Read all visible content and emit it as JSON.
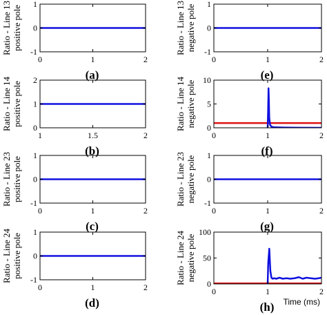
{
  "colors": {
    "primary": "#1010e0",
    "threshold": "#e01010",
    "axis": "#000000"
  },
  "chart_data": [
    {
      "id": "a",
      "type": "line",
      "panel_label": "(a)",
      "ylabel": [
        "Ratio - Line 13",
        "positive pole"
      ],
      "xlabel": "",
      "xlim": [
        0,
        2
      ],
      "ylim": [
        -1,
        1
      ],
      "xticks": [
        0,
        1,
        2
      ],
      "xtick_labels": [
        "0",
        "1",
        "2"
      ],
      "yticks": [
        -1,
        0,
        1
      ],
      "ytick_labels": [
        "-1",
        "0",
        "1"
      ],
      "grid": false,
      "series": [
        {
          "color": "#1010e0",
          "x": [
            0,
            2
          ],
          "y": [
            0,
            0
          ]
        }
      ]
    },
    {
      "id": "b",
      "type": "line",
      "panel_label": "(b)",
      "ylabel": [
        "Ratio - Line 14",
        "positive pole"
      ],
      "xlabel": "",
      "xlim": [
        1,
        2
      ],
      "ylim": [
        0,
        2
      ],
      "xticks": [
        1,
        1.5,
        2
      ],
      "xtick_labels": [
        "1",
        "1.5",
        "2"
      ],
      "yticks": [
        0,
        1,
        2
      ],
      "ytick_labels": [
        "0",
        "1",
        "2"
      ],
      "grid": false,
      "series": [
        {
          "color": "#1010e0",
          "x": [
            1,
            2
          ],
          "y": [
            1,
            1
          ]
        }
      ]
    },
    {
      "id": "c",
      "type": "line",
      "panel_label": "(c)",
      "ylabel": [
        "Ratio - Line 23",
        "positive pole"
      ],
      "xlabel": "",
      "xlim": [
        0,
        2
      ],
      "ylim": [
        -1,
        1
      ],
      "xticks": [
        0,
        1,
        2
      ],
      "xtick_labels": [
        "0",
        "1",
        "2"
      ],
      "yticks": [
        -1,
        0,
        1
      ],
      "ytick_labels": [
        "-1",
        "0",
        "1"
      ],
      "grid": false,
      "series": [
        {
          "color": "#1010e0",
          "x": [
            0,
            2
          ],
          "y": [
            0,
            0
          ]
        }
      ]
    },
    {
      "id": "d",
      "type": "line",
      "panel_label": "(d)",
      "ylabel": [
        "Ratio - Line 24",
        "positive pole"
      ],
      "xlabel": "",
      "xlim": [
        0,
        2
      ],
      "ylim": [
        -1,
        1
      ],
      "xticks": [
        0,
        1,
        2
      ],
      "xtick_labels": [
        "0",
        "1",
        "2"
      ],
      "yticks": [
        -1,
        0,
        1
      ],
      "ytick_labels": [
        "-1",
        "0",
        "1"
      ],
      "grid": false,
      "series": [
        {
          "color": "#1010e0",
          "x": [
            0,
            2
          ],
          "y": [
            0,
            0
          ]
        }
      ]
    },
    {
      "id": "e",
      "type": "line",
      "panel_label": "(e)",
      "ylabel": [
        "Ratio - Line 13",
        "negative pole"
      ],
      "xlabel": "",
      "xlim": [
        0,
        2
      ],
      "ylim": [
        -1,
        1
      ],
      "xticks": [
        0,
        1,
        2
      ],
      "xtick_labels": [
        "0",
        "1",
        "2"
      ],
      "yticks": [
        -1,
        0,
        1
      ],
      "ytick_labels": [
        "-1",
        "0",
        "1"
      ],
      "grid": false,
      "series": [
        {
          "color": "#1010e0",
          "x": [
            0,
            2
          ],
          "y": [
            0,
            0
          ]
        }
      ]
    },
    {
      "id": "f",
      "type": "line",
      "panel_label": "(f)",
      "ylabel": [
        "Ratio - Line 14",
        "negative pole"
      ],
      "xlabel": "",
      "xlim": [
        0,
        2
      ],
      "ylim": [
        0,
        10
      ],
      "xticks": [
        0,
        1,
        2
      ],
      "xtick_labels": [
        "0",
        "1",
        "2"
      ],
      "yticks": [
        0,
        5,
        10
      ],
      "ytick_labels": [
        "0",
        "5",
        "10"
      ],
      "grid": false,
      "series": [
        {
          "color": "#e01010",
          "x": [
            0,
            2
          ],
          "y": [
            1,
            1
          ]
        },
        {
          "color": "#1010e0",
          "x": [
            1.0,
            1.008,
            1.016,
            1.022,
            1.03,
            1.045,
            1.07,
            1.12,
            1.3,
            1.6,
            2.0
          ],
          "y": [
            0,
            3.5,
            8.3,
            6.0,
            2.0,
            0.6,
            0.25,
            0.1,
            0.05,
            0.02,
            0.0
          ]
        }
      ]
    },
    {
      "id": "g",
      "type": "line",
      "panel_label": "(g)",
      "ylabel": [
        "Ratio - Line 23",
        "negative pole"
      ],
      "xlabel": "",
      "xlim": [
        0,
        2
      ],
      "ylim": [
        -1,
        1
      ],
      "xticks": [
        0,
        1,
        2
      ],
      "xtick_labels": [
        "0",
        "1",
        "2"
      ],
      "yticks": [
        -1,
        0,
        1
      ],
      "ytick_labels": [
        "-1",
        "0",
        "1"
      ],
      "grid": false,
      "series": [
        {
          "color": "#1010e0",
          "x": [
            0,
            2
          ],
          "y": [
            0,
            0
          ]
        }
      ]
    },
    {
      "id": "h",
      "type": "line",
      "panel_label": "(h)",
      "ylabel": [
        "Ratio - Line 24",
        "negative pole"
      ],
      "xlabel": "Time (ms)",
      "xlim": [
        0,
        2
      ],
      "ylim": [
        0,
        100
      ],
      "xticks": [
        0,
        1,
        2
      ],
      "xtick_labels": [
        "0",
        "1",
        "2"
      ],
      "yticks": [
        0,
        50,
        100
      ],
      "ytick_labels": [
        "0",
        "50",
        "100"
      ],
      "grid": false,
      "series": [
        {
          "color": "#e01010",
          "x": [
            0,
            2
          ],
          "y": [
            1,
            1
          ]
        },
        {
          "color": "#1010e0",
          "x": [
            1.0,
            1.01,
            1.03,
            1.05,
            1.07,
            1.09,
            1.12,
            1.16,
            1.22,
            1.28,
            1.35,
            1.42,
            1.5,
            1.58,
            1.65,
            1.72,
            1.8,
            1.88,
            1.95,
            2.0
          ],
          "y": [
            0,
            40,
            68,
            25,
            12,
            10,
            11,
            10,
            12,
            10,
            11,
            10,
            11,
            13,
            10,
            12,
            11,
            10,
            11,
            12
          ]
        }
      ]
    }
  ]
}
